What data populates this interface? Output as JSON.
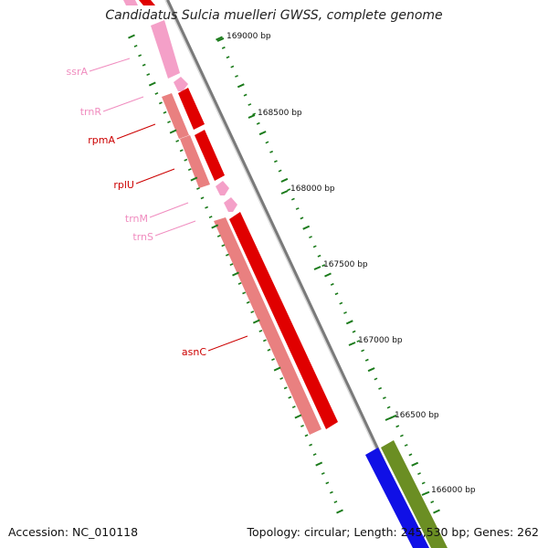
{
  "title": "Candidatus Sulcia muelleri GWSS, complete genome",
  "footer": {
    "accession": "Accession: NC_010118",
    "summary": "Topology: circular; Length: 245,530 bp; Genes: 262"
  },
  "colors": {
    "backbone": "#7a7a7a",
    "rna_feature": "#f4a0c8",
    "forward_gene": "#e00000",
    "reverse_gene": "#e98080",
    "other_gene_blue": "#1010e6",
    "other_gene_green": "#6b8e23",
    "tick_mark": "#1a7a1a",
    "rna_label": "#f08cbf",
    "gene_label": "#cc0000"
  },
  "scale": {
    "unit": "bp",
    "major_ticks": [
      {
        "position": 169000,
        "label": "169000 bp"
      },
      {
        "position": 168500,
        "label": "168500 bp"
      },
      {
        "position": 168000,
        "label": "168000 bp"
      },
      {
        "position": 167500,
        "label": "167500 bp"
      },
      {
        "position": 167000,
        "label": "167000 bp"
      },
      {
        "position": 166500,
        "label": "166500 bp"
      },
      {
        "position": 166000,
        "label": "166000 bp"
      }
    ]
  },
  "feature_labels": [
    {
      "name": "ssrA",
      "kind": "rna"
    },
    {
      "name": "trnR",
      "kind": "rna"
    },
    {
      "name": "rpmA",
      "kind": "gene"
    },
    {
      "name": "rplU",
      "kind": "gene"
    },
    {
      "name": "trnM",
      "kind": "rna"
    },
    {
      "name": "trnS",
      "kind": "rna"
    },
    {
      "name": "asnC",
      "kind": "gene"
    }
  ]
}
